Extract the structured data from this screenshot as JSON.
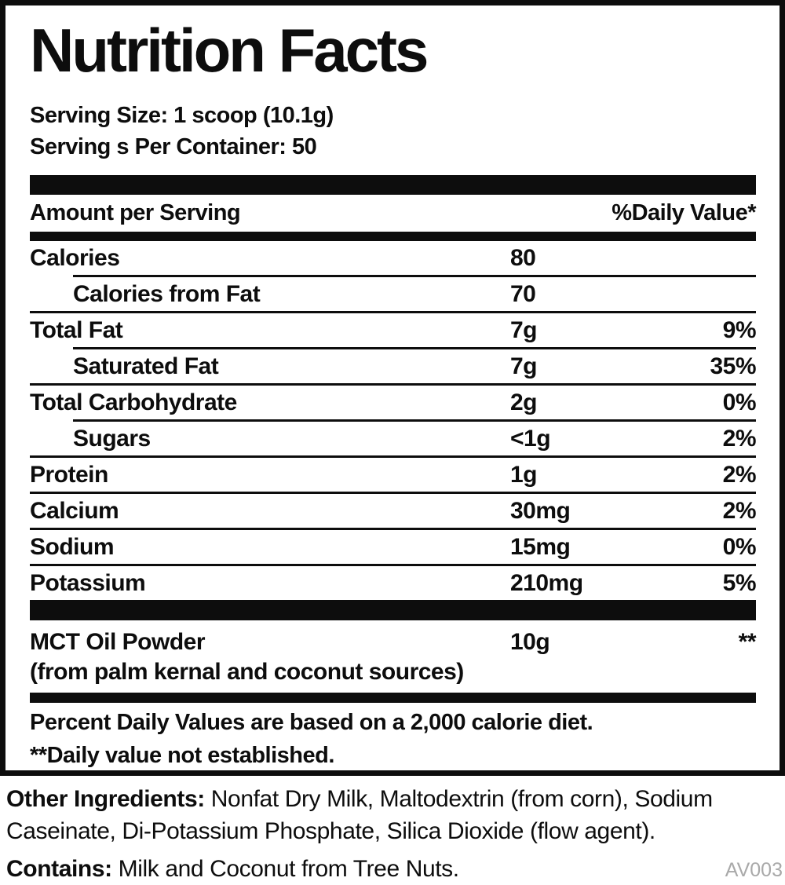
{
  "label": {
    "title": "Nutrition Facts",
    "serving_size": "Serving Size: 1 scoop (10.1g)",
    "servings_per_container": "Serving s Per Container: 50",
    "header": {
      "amount": "Amount per Serving",
      "daily_value": "%Daily Value*"
    },
    "rows": [
      {
        "name": "Calories",
        "value": "80",
        "dv": ""
      },
      {
        "name": "Calories from Fat",
        "value": "70",
        "dv": ""
      },
      {
        "name": "Total Fat",
        "value": "7g",
        "dv": "9%"
      },
      {
        "name": "Saturated Fat",
        "value": "7g",
        "dv": "35%"
      },
      {
        "name": "Total Carbohydrate",
        "value": "2g",
        "dv": "0%"
      },
      {
        "name": "Sugars",
        "value": "<1g",
        "dv": "2%"
      },
      {
        "name": "Protein",
        "value": "1g",
        "dv": "2%"
      },
      {
        "name": "Calcium",
        "value": "30mg",
        "dv": "2%"
      },
      {
        "name": "Sodium",
        "value": "15mg",
        "dv": "0%"
      },
      {
        "name": "Potassium",
        "value": "210mg",
        "dv": "5%"
      }
    ],
    "supplement": {
      "name": "MCT Oil Powder",
      "value": "10g",
      "dv": "**",
      "note": "(from palm kernal and coconut sources)"
    },
    "footnotes": [
      "Percent Daily Values are based on a 2,000 calorie diet.",
      "**Daily value not established."
    ]
  },
  "other_ingredients": {
    "lead": "Other Ingredients:",
    "text": "Nonfat Dry Milk, Maltodextrin (from corn), Sodium Caseinate, Di-Potassium Phosphate, Silica Dioxide (flow agent)."
  },
  "contains": {
    "lead": "Contains:",
    "text": "Milk and Coconut from Tree Nuts."
  },
  "code": "AV003",
  "colors": {
    "ink": "#0d0d0d",
    "muted_gray": "#a9a9a9",
    "background": "#ffffff"
  }
}
